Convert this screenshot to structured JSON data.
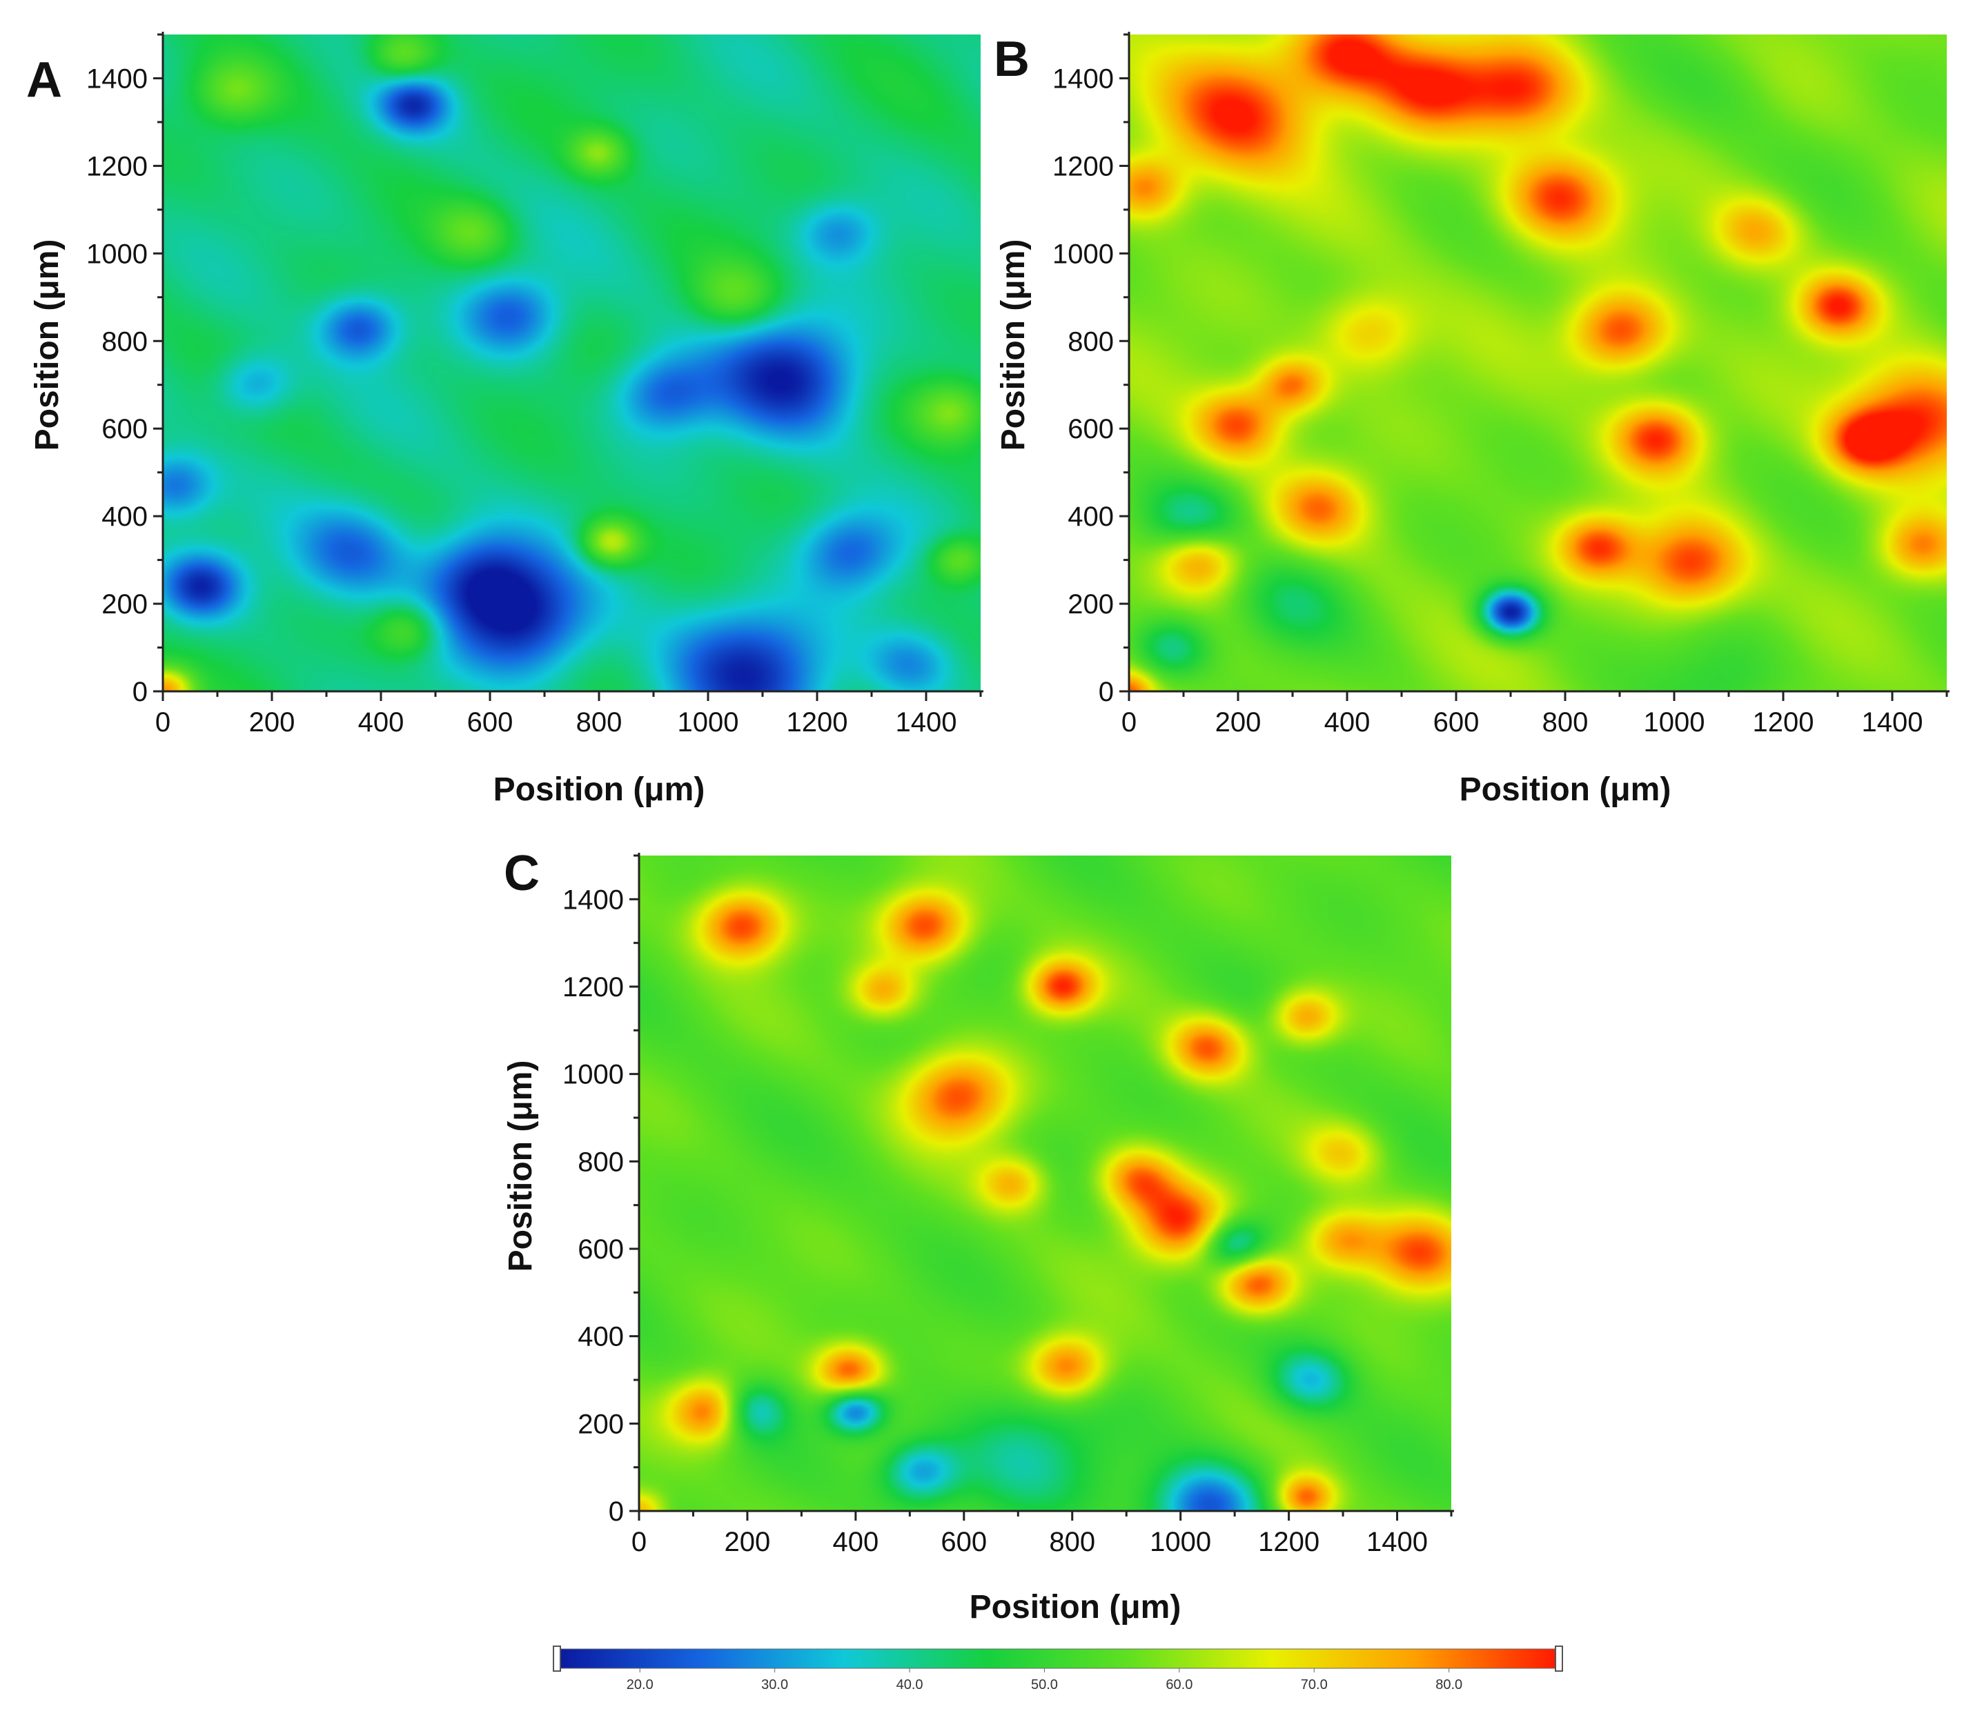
{
  "chart_data": [
    {
      "type": "heatmap",
      "panel_label": "A",
      "xlabel": "Position (μm)",
      "ylabel": "Position (μm)",
      "xlim": [
        0,
        1500
      ],
      "ylim": [
        0,
        1500
      ],
      "x_ticks": [
        0,
        200,
        400,
        600,
        800,
        1000,
        1200,
        1400
      ],
      "y_ticks": [
        0,
        200,
        400,
        600,
        800,
        1000,
        1200,
        1400
      ],
      "base_value": 42,
      "features": [
        {
          "x": 460,
          "y": 1340,
          "v": 20,
          "r": 35
        },
        {
          "x": 70,
          "y": 240,
          "v": 18,
          "r": 40
        },
        {
          "x": 20,
          "y": 470,
          "v": 25,
          "r": 40
        },
        {
          "x": 360,
          "y": 830,
          "v": 22,
          "r": 40
        },
        {
          "x": 660,
          "y": 160,
          "v": 16,
          "r": 70
        },
        {
          "x": 580,
          "y": 260,
          "v": 20,
          "r": 60
        },
        {
          "x": 1080,
          "y": 50,
          "v": 18,
          "r": 80
        },
        {
          "x": 1150,
          "y": 720,
          "v": 16,
          "r": 75
        },
        {
          "x": 920,
          "y": 680,
          "v": 24,
          "r": 50
        },
        {
          "x": 350,
          "y": 320,
          "v": 24,
          "r": 60
        },
        {
          "x": 640,
          "y": 860,
          "v": 24,
          "r": 50
        },
        {
          "x": 1260,
          "y": 320,
          "v": 25,
          "r": 50
        },
        {
          "x": 1370,
          "y": 60,
          "v": 28,
          "r": 45
        },
        {
          "x": 1240,
          "y": 1050,
          "v": 30,
          "r": 40
        },
        {
          "x": 170,
          "y": 700,
          "v": 28,
          "r": 40
        },
        {
          "x": 820,
          "y": 340,
          "v": 65,
          "r": 30
        },
        {
          "x": 440,
          "y": 1450,
          "v": 58,
          "r": 35
        },
        {
          "x": 800,
          "y": 1230,
          "v": 58,
          "r": 30
        },
        {
          "x": 1450,
          "y": 640,
          "v": 58,
          "r": 40
        },
        {
          "x": 0,
          "y": 0,
          "v": 78,
          "r": 30
        },
        {
          "x": 130,
          "y": 1370,
          "v": 55,
          "r": 40
        },
        {
          "x": 570,
          "y": 1050,
          "v": 54,
          "r": 40
        },
        {
          "x": 1460,
          "y": 300,
          "v": 58,
          "r": 30
        },
        {
          "x": 450,
          "y": 140,
          "v": 56,
          "r": 35
        },
        {
          "x": 1050,
          "y": 900,
          "v": 55,
          "r": 45
        }
      ]
    },
    {
      "type": "heatmap",
      "panel_label": "B",
      "xlabel": "Position (μm)",
      "ylabel": "Position (μm)",
      "xlim": [
        0,
        1500
      ],
      "ylim": [
        0,
        1500
      ],
      "x_ticks": [
        0,
        200,
        400,
        600,
        800,
        1000,
        1200,
        1400
      ],
      "y_ticks": [
        0,
        200,
        400,
        600,
        800,
        1000,
        1200,
        1400
      ],
      "base_value": 58,
      "features": [
        {
          "x": 200,
          "y": 1320,
          "v": 88,
          "r": 80
        },
        {
          "x": 400,
          "y": 1460,
          "v": 88,
          "r": 55
        },
        {
          "x": 550,
          "y": 1380,
          "v": 86,
          "r": 60
        },
        {
          "x": 720,
          "y": 1370,
          "v": 85,
          "r": 60
        },
        {
          "x": 790,
          "y": 1130,
          "v": 86,
          "r": 55
        },
        {
          "x": 900,
          "y": 820,
          "v": 87,
          "r": 50
        },
        {
          "x": 1300,
          "y": 880,
          "v": 86,
          "r": 40
        },
        {
          "x": 1450,
          "y": 620,
          "v": 88,
          "r": 70
        },
        {
          "x": 1350,
          "y": 570,
          "v": 84,
          "r": 40
        },
        {
          "x": 970,
          "y": 580,
          "v": 86,
          "r": 45
        },
        {
          "x": 1030,
          "y": 290,
          "v": 86,
          "r": 55
        },
        {
          "x": 860,
          "y": 330,
          "v": 84,
          "r": 40
        },
        {
          "x": 200,
          "y": 610,
          "v": 84,
          "r": 45
        },
        {
          "x": 130,
          "y": 300,
          "v": 80,
          "r": 40
        },
        {
          "x": 350,
          "y": 420,
          "v": 78,
          "r": 45
        },
        {
          "x": 30,
          "y": 1150,
          "v": 80,
          "r": 40
        },
        {
          "x": 300,
          "y": 700,
          "v": 82,
          "r": 35
        },
        {
          "x": 1450,
          "y": 330,
          "v": 78,
          "r": 40
        },
        {
          "x": 700,
          "y": 180,
          "v": 15,
          "r": 30
        },
        {
          "x": 120,
          "y": 390,
          "v": 42,
          "r": 50
        },
        {
          "x": 80,
          "y": 100,
          "v": 40,
          "r": 40
        },
        {
          "x": 300,
          "y": 200,
          "v": 45,
          "r": 60
        },
        {
          "x": 1100,
          "y": 20,
          "v": 48,
          "r": 70
        },
        {
          "x": 1080,
          "y": 1380,
          "v": 54,
          "r": 70
        },
        {
          "x": 1350,
          "y": 1200,
          "v": 56,
          "r": 80
        },
        {
          "x": 0,
          "y": 0,
          "v": 80,
          "r": 25
        },
        {
          "x": 440,
          "y": 820,
          "v": 74,
          "r": 50
        },
        {
          "x": 1150,
          "y": 1050,
          "v": 76,
          "r": 45
        }
      ]
    },
    {
      "type": "heatmap",
      "panel_label": "C",
      "xlabel": "Position (μm)",
      "ylabel": "Position (μm)",
      "xlim": [
        0,
        1500
      ],
      "ylim": [
        0,
        1500
      ],
      "x_ticks": [
        0,
        200,
        400,
        600,
        800,
        1000,
        1200,
        1400
      ],
      "y_ticks": [
        0,
        200,
        400,
        600,
        800,
        1000,
        1200,
        1400
      ],
      "base_value": 55,
      "features": [
        {
          "x": 190,
          "y": 1340,
          "v": 86,
          "r": 45
        },
        {
          "x": 530,
          "y": 1340,
          "v": 86,
          "r": 45
        },
        {
          "x": 590,
          "y": 950,
          "v": 84,
          "r": 55
        },
        {
          "x": 780,
          "y": 1200,
          "v": 86,
          "r": 35
        },
        {
          "x": 1050,
          "y": 1060,
          "v": 82,
          "r": 40
        },
        {
          "x": 1000,
          "y": 660,
          "v": 86,
          "r": 50
        },
        {
          "x": 1140,
          "y": 520,
          "v": 86,
          "r": 40
        },
        {
          "x": 920,
          "y": 760,
          "v": 80,
          "r": 40
        },
        {
          "x": 130,
          "y": 230,
          "v": 84,
          "r": 40
        },
        {
          "x": 390,
          "y": 320,
          "v": 84,
          "r": 35
        },
        {
          "x": 790,
          "y": 330,
          "v": 82,
          "r": 40
        },
        {
          "x": 1440,
          "y": 590,
          "v": 82,
          "r": 50
        },
        {
          "x": 1300,
          "y": 620,
          "v": 78,
          "r": 40
        },
        {
          "x": 1230,
          "y": 1130,
          "v": 78,
          "r": 35
        },
        {
          "x": 1230,
          "y": 30,
          "v": 82,
          "r": 30
        },
        {
          "x": 690,
          "y": 750,
          "v": 74,
          "r": 35
        },
        {
          "x": 450,
          "y": 1190,
          "v": 76,
          "r": 35
        },
        {
          "x": 1100,
          "y": 610,
          "v": 30,
          "r": 35
        },
        {
          "x": 400,
          "y": 230,
          "v": 24,
          "r": 30
        },
        {
          "x": 520,
          "y": 90,
          "v": 30,
          "r": 40
        },
        {
          "x": 1050,
          "y": 10,
          "v": 22,
          "r": 55
        },
        {
          "x": 1240,
          "y": 300,
          "v": 35,
          "r": 40
        },
        {
          "x": 210,
          "y": 230,
          "v": 35,
          "r": 35
        },
        {
          "x": 700,
          "y": 120,
          "v": 40,
          "r": 80
        },
        {
          "x": 1300,
          "y": 820,
          "v": 70,
          "r": 40
        },
        {
          "x": 0,
          "y": 0,
          "v": 75,
          "r": 25
        }
      ]
    }
  ],
  "colorbar": {
    "min": 14,
    "max": 88,
    "tick_labels": [
      "20.0",
      "30.0",
      "40.0",
      "50.0",
      "60.0",
      "70.0",
      "80.0"
    ],
    "tick_values": [
      20,
      30,
      40,
      50,
      60,
      70,
      80
    ],
    "colors": [
      "#0a1aa0",
      "#1565e0",
      "#10c8d8",
      "#16d040",
      "#60e020",
      "#e8f000",
      "#ffa000",
      "#ff1a00"
    ]
  }
}
